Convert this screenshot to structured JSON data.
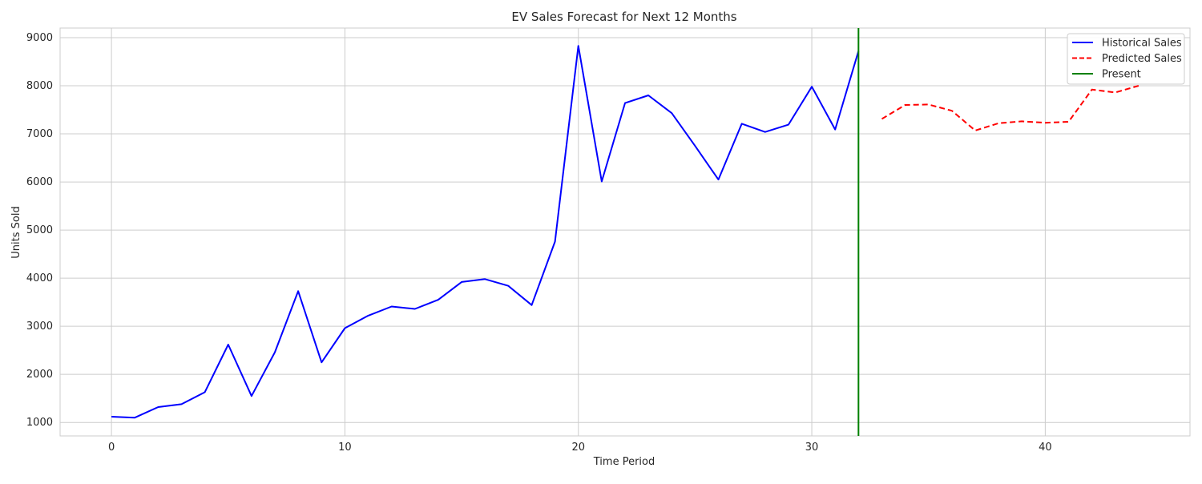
{
  "chart_data": {
    "type": "line",
    "title": "EV Sales Forecast for Next 12 Months",
    "xlabel": "Time Period",
    "ylabel": "Units Sold",
    "xlim": [
      -2.2,
      46.2
    ],
    "ylim": [
      720,
      9200
    ],
    "xticks": [
      0,
      10,
      20,
      30,
      40
    ],
    "yticks": [
      1000,
      2000,
      3000,
      4000,
      5000,
      6000,
      7000,
      8000,
      9000
    ],
    "grid": true,
    "legend_position": "top-right",
    "series": [
      {
        "name": "Historical Sales",
        "color": "#0000ff",
        "style": "solid",
        "x": [
          0,
          1,
          2,
          3,
          4,
          5,
          6,
          7,
          8,
          9,
          10,
          11,
          12,
          13,
          14,
          15,
          16,
          17,
          18,
          19,
          20,
          21,
          22,
          23,
          24,
          25,
          26,
          27,
          28,
          29,
          30,
          31,
          32
        ],
        "values": [
          1120,
          1100,
          1320,
          1380,
          1630,
          2620,
          1550,
          2460,
          3730,
          2250,
          2960,
          3220,
          3410,
          3360,
          3550,
          3920,
          3980,
          3840,
          3440,
          4760,
          8830,
          6010,
          7640,
          7800,
          7430,
          6750,
          6050,
          7210,
          7040,
          7190,
          7980,
          7090,
          8720
        ]
      },
      {
        "name": "Predicted Sales",
        "color": "#ff0000",
        "style": "dashed",
        "x": [
          33,
          34,
          35,
          36,
          37,
          38,
          39,
          40,
          41,
          42,
          43,
          44
        ],
        "values": [
          7310,
          7600,
          7610,
          7480,
          7070,
          7220,
          7260,
          7230,
          7250,
          7920,
          7860,
          8000
        ]
      },
      {
        "name": "Present",
        "color": "#008000",
        "style": "vline",
        "x": [
          32
        ]
      }
    ]
  }
}
